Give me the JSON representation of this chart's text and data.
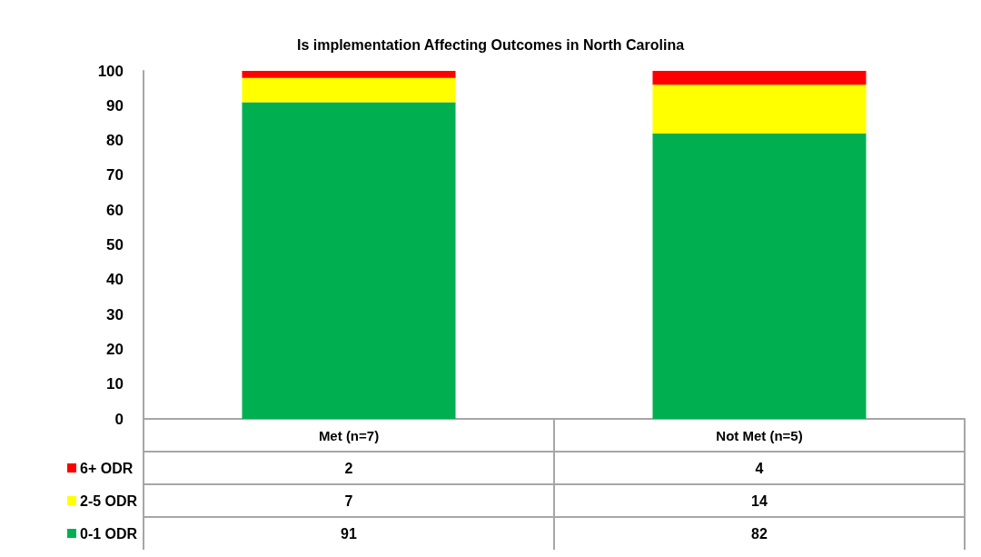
{
  "chart_data": {
    "type": "bar",
    "title": "Is implementation Affecting Outcomes in North Carolina",
    "categories": [
      "Met (n=7)",
      "Not Met (n=5)"
    ],
    "stacked": true,
    "series": [
      {
        "name": "0-1 ODR",
        "color": "#00b050",
        "values": [
          91,
          82
        ]
      },
      {
        "name": "2-5 ODR",
        "color": "#ffff00",
        "values": [
          7,
          14
        ]
      },
      {
        "name": "6+ ODR",
        "color": "#ff0000",
        "values": [
          2,
          4
        ]
      }
    ],
    "ylim": [
      0,
      100
    ],
    "yticks": [
      0,
      10,
      20,
      30,
      40,
      50,
      60,
      70,
      80,
      90,
      100
    ],
    "grid": false,
    "legend": "bottom left",
    "data_labels": true
  }
}
